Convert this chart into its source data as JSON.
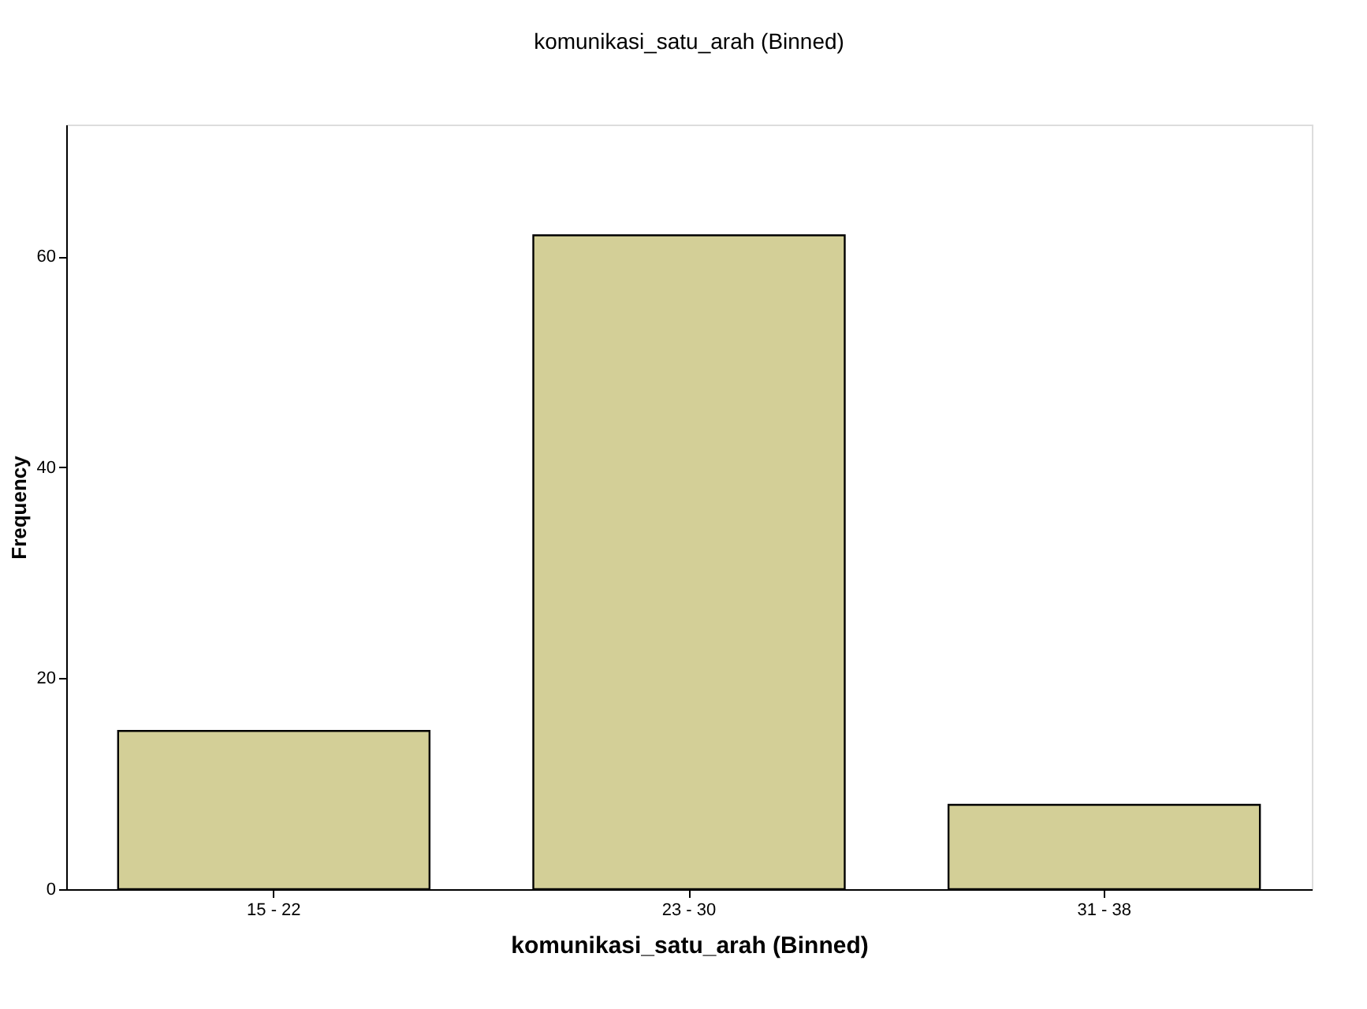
{
  "chart_data": {
    "type": "bar",
    "title": "komunikasi_satu_arah (Binned)",
    "xlabel": "komunikasi_satu_arah (Binned)",
    "ylabel": "Frequency",
    "categories": [
      "15 - 22",
      "23 - 30",
      "31 - 38"
    ],
    "values": [
      15,
      62,
      8
    ],
    "color": "#d3cf97",
    "ylim": [
      0,
      72.5
    ],
    "yticks": [
      0,
      20,
      40,
      60
    ],
    "grid": false
  }
}
